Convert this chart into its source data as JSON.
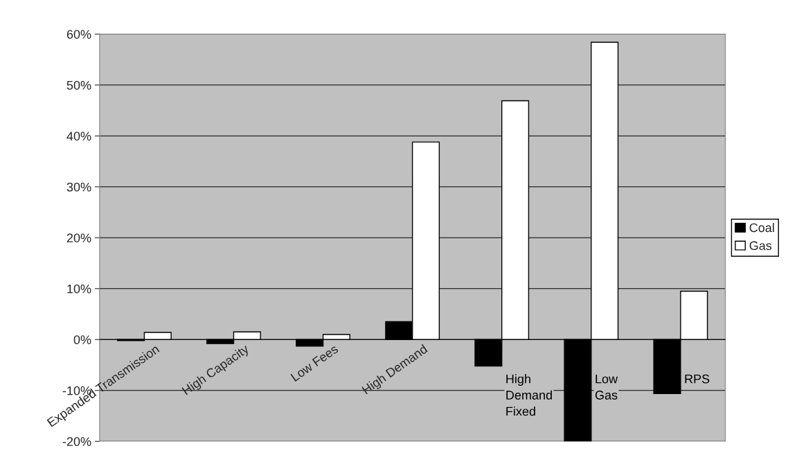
{
  "chart_data": {
    "type": "bar",
    "categories": [
      "Expanded Transmission",
      "High Capacity",
      "Low Fees",
      "High Demand",
      "High Demand Fixed",
      "Low Gas",
      "RPS"
    ],
    "series": [
      {
        "name": "Coal",
        "color": "#000000",
        "values": [
          -0.2,
          -0.8,
          -1.3,
          3.5,
          -5.2,
          -20,
          -10.6
        ]
      },
      {
        "name": "Gas",
        "color": "#ffffff",
        "values": [
          1.4,
          1.5,
          1.0,
          38.8,
          46.9,
          58.4,
          9.5
        ]
      }
    ],
    "ylim": [
      -20,
      60
    ],
    "yticks": [
      {
        "value": -20,
        "label": "-20%"
      },
      {
        "value": -10,
        "label": "-10%"
      },
      {
        "value": 0,
        "label": "0%"
      },
      {
        "value": 10,
        "label": "10%"
      },
      {
        "value": 20,
        "label": "20%"
      },
      {
        "value": 30,
        "label": "30%"
      },
      {
        "value": 40,
        "label": "40%"
      },
      {
        "value": 50,
        "label": "50%"
      },
      {
        "value": 60,
        "label": "60%"
      }
    ],
    "grid": "y",
    "legend": "right"
  }
}
